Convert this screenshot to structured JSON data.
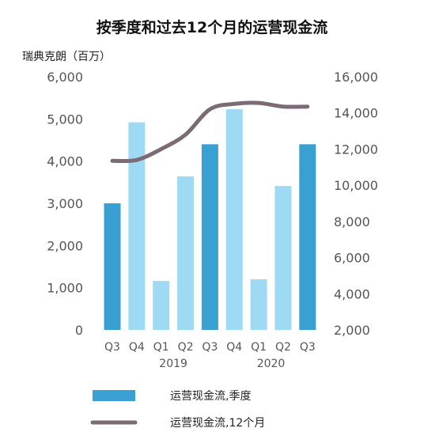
{
  "chart_data": {
    "type": "bar",
    "title": "按季度和过去12个月的运营现金流",
    "ylabel": "瑞典克朗（百万）",
    "categories": [
      "Q3",
      "Q4",
      "Q1",
      "Q2",
      "Q3",
      "Q4",
      "Q1",
      "Q2",
      "Q3"
    ],
    "year_labels": [
      {
        "label": "2019",
        "center_index": 2.5
      },
      {
        "label": "2020",
        "center_index": 6.5
      }
    ],
    "left_axis": {
      "ylim": [
        0,
        6000
      ],
      "ticks": [
        0,
        1000,
        2000,
        3000,
        4000,
        5000,
        6000
      ],
      "tick_labels": [
        "0",
        "1,000",
        "2,000",
        "3,000",
        "4,000",
        "5,000",
        "6,000"
      ]
    },
    "right_axis": {
      "ylim": [
        2000,
        16000
      ],
      "ticks": [
        2000,
        4000,
        6000,
        8000,
        10000,
        12000,
        14000,
        16000
      ],
      "tick_labels": [
        "2,000",
        "4,000",
        "6,000",
        "8,000",
        "10,000",
        "12,000",
        "14,000",
        "16,000"
      ]
    },
    "series": [
      {
        "name": "运营现金流,季度",
        "type": "bar",
        "axis": "left",
        "values": [
          3000,
          4920,
          1160,
          3640,
          4400,
          5230,
          1200,
          3410,
          4400
        ],
        "colors": [
          "#3a9fd1",
          "#9edaf3",
          "#9edaf3",
          "#9edaf3",
          "#3a9fd1",
          "#9edaf3",
          "#9edaf3",
          "#9edaf3",
          "#3a9fd1"
        ]
      },
      {
        "name": "运营现金流,12个月",
        "type": "line",
        "axis": "right",
        "values": [
          11350,
          11400,
          12000,
          12800,
          14200,
          14500,
          14550,
          14350,
          14350
        ],
        "color": "#7b6b74"
      }
    ],
    "grid": false,
    "legend": "bottom"
  }
}
